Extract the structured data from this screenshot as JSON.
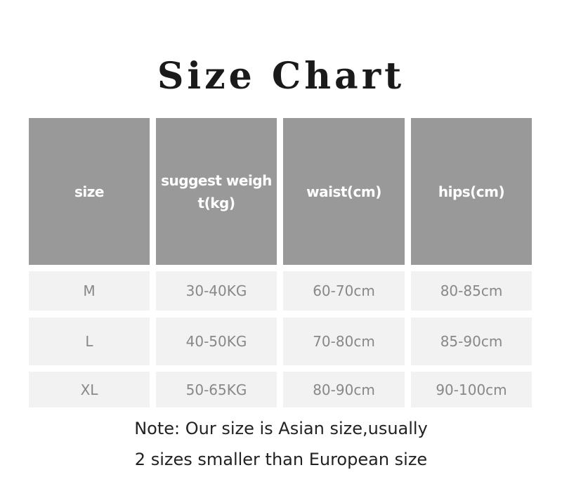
{
  "title": "Size Chart",
  "table": {
    "headers": [
      "size",
      "suggest weigh t(kg)",
      "waist(cm)",
      "hips(cm)"
    ],
    "rows": [
      [
        "M",
        "30-40KG",
        "60-70cm",
        "80-85cm"
      ],
      [
        "L",
        "40-50KG",
        "70-80cm",
        "85-90cm"
      ],
      [
        "XL",
        "50-65KG",
        "80-90cm",
        "90-100cm"
      ]
    ]
  },
  "note": {
    "line1": "Note: Our size is Asian size,usually",
    "line2": "2 sizes smaller than European size"
  },
  "colors": {
    "header_bg": "#999999",
    "row_bg": "#f2f2f2",
    "row_text": "#888888"
  }
}
